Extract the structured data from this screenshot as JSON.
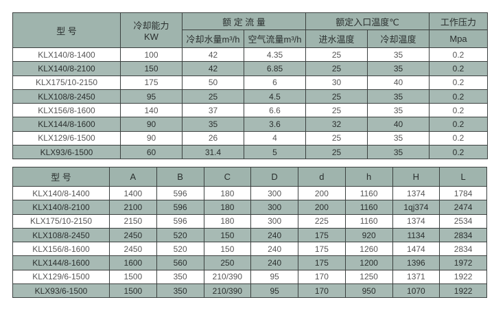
{
  "table1": {
    "headers": {
      "model": "型    号",
      "capacity": "冷却能力",
      "capacity_unit": "KW",
      "rated_flow": "额 定 流 量",
      "water_flow": "冷却水量m³/h",
      "air_flow": "空气流量m³/h",
      "inlet_temp": "额定入口温度℃",
      "water_temp": "进水温度",
      "cooling_temp": "冷却温度",
      "pressure": "工作压力",
      "pressure_unit": "Mpa"
    },
    "rows": [
      [
        "KLX140/8-1400",
        "100",
        "42",
        "4.35",
        "25",
        "35",
        "0.2"
      ],
      [
        "KLX140/8-2100",
        "150",
        "42",
        "6.85",
        "25",
        "35",
        "0.2"
      ],
      [
        "KLX175/10-2150",
        "175",
        "50",
        "6",
        "30",
        "40",
        "0.2"
      ],
      [
        "KLX108/8-2450",
        "95",
        "25",
        "4.5",
        "25",
        "35",
        "0.2"
      ],
      [
        "KLX156/8-1600",
        "140",
        "37",
        "6.6",
        "25",
        "35",
        "0.2"
      ],
      [
        "KLX144/8-1600",
        "90",
        "35",
        "3.6",
        "32",
        "40",
        "0.2"
      ],
      [
        "KLX129/6-1500",
        "90",
        "26",
        "4",
        "25",
        "35",
        "0.2"
      ],
      [
        "KLX93/6-1500",
        "60",
        "31.4",
        "5",
        "25",
        "35",
        "0.2"
      ]
    ]
  },
  "table2": {
    "headers": [
      "型    号",
      "A",
      "B",
      "C",
      "D",
      "d",
      "h",
      "H",
      "L"
    ],
    "rows": [
      [
        "KLX140/8-1400",
        "1400",
        "596",
        "180",
        "300",
        "200",
        "1160",
        "1374",
        "1784"
      ],
      [
        "KLX140/8-2100",
        "2100",
        "596",
        "180",
        "300",
        "200",
        "1160",
        "1qj374",
        "2474"
      ],
      [
        "KLX175/10-2150",
        "2150",
        "596",
        "180",
        "300",
        "225",
        "1160",
        "1374",
        "2534"
      ],
      [
        "KLX108/8-2450",
        "2450",
        "520",
        "150",
        "240",
        "175",
        "920",
        "1134",
        "2834"
      ],
      [
        "KLX156/8-1600",
        "2450",
        "520",
        "150",
        "240",
        "175",
        "1260",
        "1474",
        "2834"
      ],
      [
        "KLX144/8-1600",
        "1600",
        "560",
        "250",
        "240",
        "175",
        "1200",
        "1396",
        "1972"
      ],
      [
        "KLX129/6-1500",
        "1500",
        "350",
        "210/390",
        "95",
        "170",
        "1250",
        "1371",
        "1922"
      ],
      [
        "KLX93/6-1500",
        "1500",
        "350",
        "210/390",
        "95",
        "170",
        "950",
        "1070",
        "1922"
      ]
    ]
  },
  "colors": {
    "header": "#9fb4ad",
    "shaded_row": "#a7bab4",
    "border": "#3a3f3e"
  }
}
